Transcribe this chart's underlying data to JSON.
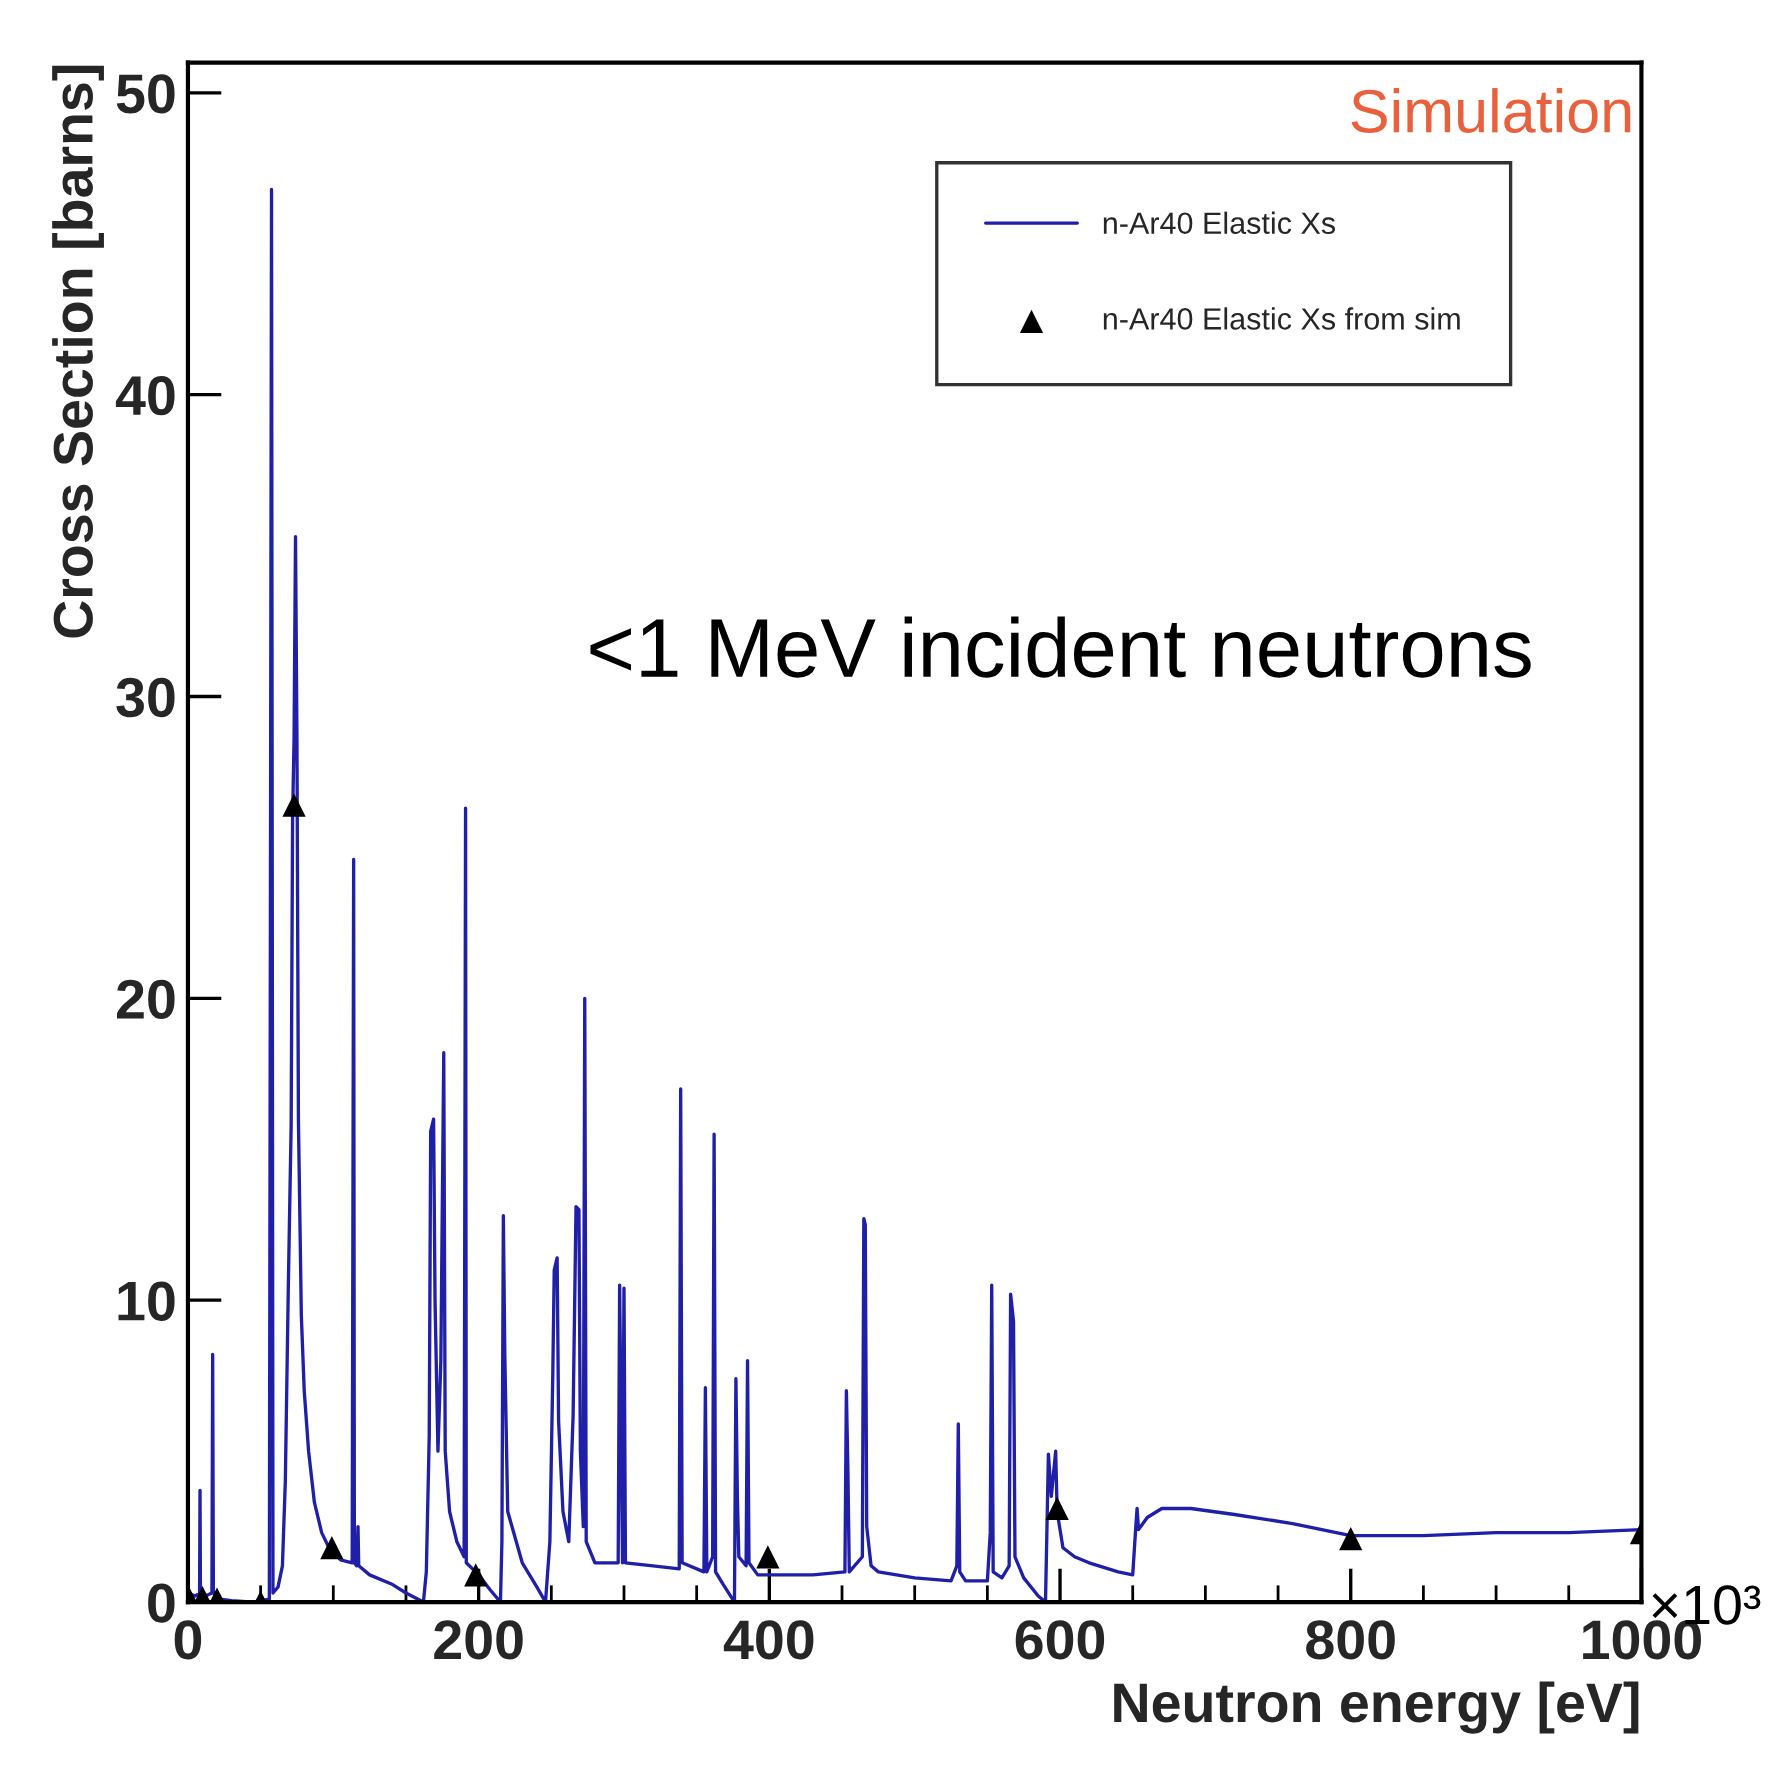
{
  "chart_data": {
    "type": "line",
    "xlabel": "Neutron energy [eV]",
    "ylabel": "Cross Section [barns]",
    "xlim": [
      0,
      1000
    ],
    "xticks": [
      0,
      200,
      400,
      600,
      800,
      1000
    ],
    "ylim": [
      0,
      51
    ],
    "yticks": [
      0,
      10,
      20,
      30,
      40,
      50
    ],
    "grid": false,
    "legend": "top right",
    "annotations": [
      "Simulation",
      "<1 MeV incident neutrons",
      "×10³"
    ],
    "series": [
      {
        "name": "n-Ar40 Elastic Xs",
        "type": "line",
        "color": "#1f1fa8",
        "marker": "none",
        "line_style": "solid",
        "x": [
          0,
          5,
          8,
          8.3,
          8.6,
          12,
          16.5,
          17,
          17.5,
          22,
          30,
          45,
          56,
          57.5,
          58.5,
          62,
          65,
          67,
          69,
          71,
          72,
          73,
          74,
          75,
          76,
          78,
          80,
          83,
          87,
          92,
          97,
          105,
          113,
          114,
          114.5,
          116,
          117,
          117.5,
          125,
          140,
          150,
          162,
          164,
          166,
          167,
          169,
          170,
          172,
          174,
          176,
          177,
          180,
          185,
          190,
          191,
          191.5,
          200,
          208,
          215,
          216,
          217,
          218,
          220,
          230,
          240,
          246,
          249,
          251,
          252,
          254,
          255,
          258,
          262,
          265,
          267,
          269,
          270,
          272,
          273,
          274,
          280,
          296,
          297,
          299,
          300,
          301,
          320,
          338,
          339,
          340,
          355,
          356,
          357,
          361,
          362,
          363,
          368,
          376,
          377,
          378,
          379,
          384,
          385,
          386,
          392,
          430,
          452,
          453,
          454,
          455,
          464,
          465,
          466,
          467,
          470,
          475,
          500,
          525,
          529,
          530,
          531,
          535,
          550,
          552,
          553,
          554,
          560,
          565,
          566,
          568,
          569,
          575,
          585,
          590,
          592,
          594,
          597,
          598,
          602,
          610,
          620,
          640,
          650,
          652,
          653,
          654,
          660,
          670,
          690,
          720,
          760,
          800,
          850,
          900,
          950,
          1000
        ],
        "values": [
          0.3,
          0.2,
          0.3,
          3.7,
          0.3,
          0.2,
          0.3,
          8.2,
          0.3,
          0.1,
          0.05,
          0.0,
          0.1,
          46.8,
          0.3,
          0.5,
          1.2,
          4.0,
          10.3,
          15.8,
          26,
          28.6,
          35.3,
          28.5,
          16,
          9.5,
          7,
          5,
          3.3,
          2.3,
          1.8,
          1.4,
          1.3,
          24.6,
          1.3,
          1.2,
          2.5,
          1.2,
          0.9,
          0.6,
          0.3,
          0,
          1,
          5.5,
          15.6,
          16,
          10,
          5,
          8,
          18.2,
          5,
          3,
          2,
          1.5,
          26.3,
          1.3,
          0.9,
          0.4,
          0,
          2,
          12.8,
          8.2,
          3,
          1.3,
          0.5,
          0,
          2,
          7.5,
          11,
          11.4,
          6,
          3,
          2,
          6.2,
          13.1,
          13,
          5,
          2.5,
          20,
          2,
          1.3,
          1.3,
          10.5,
          1.3,
          10.4,
          1.3,
          1.2,
          1.1,
          17.0,
          1.3,
          1.0,
          7.1,
          1.0,
          1.5,
          15.5,
          1.0,
          0.6,
          0.0,
          7.4,
          3.5,
          1.5,
          1.2,
          8.0,
          1.3,
          0.9,
          0.9,
          1.0,
          7.0,
          4.5,
          1.0,
          1.5,
          12.7,
          12.5,
          2.5,
          1.2,
          1.0,
          0.8,
          0.7,
          1.2,
          5.9,
          1.0,
          0.7,
          0.7,
          2.3,
          10.5,
          1.0,
          0.8,
          1.2,
          10.2,
          9.3,
          1.5,
          0.8,
          0.2,
          0.0,
          4.9,
          3.5,
          5.0,
          3.0,
          1.8,
          1.5,
          1.3,
          1.0,
          0.9,
          2.4,
          3.1,
          2.4,
          2.8,
          3.1,
          3.1,
          2.9,
          2.6,
          2.2,
          2.2,
          2.3,
          2.3,
          2.4
        ]
      },
      {
        "name": "n-Ar40 Elastic Xs from sim",
        "type": "scatter",
        "color": "#000000",
        "marker": "triangle",
        "x": [
          0,
          10,
          20,
          50,
          73,
          99,
          198,
          399,
          598,
          800,
          1000
        ],
        "values": [
          0.2,
          0.15,
          0.1,
          0.0,
          26.4,
          1.8,
          0.9,
          1.5,
          3.1,
          2.1,
          2.3
        ]
      }
    ]
  }
}
